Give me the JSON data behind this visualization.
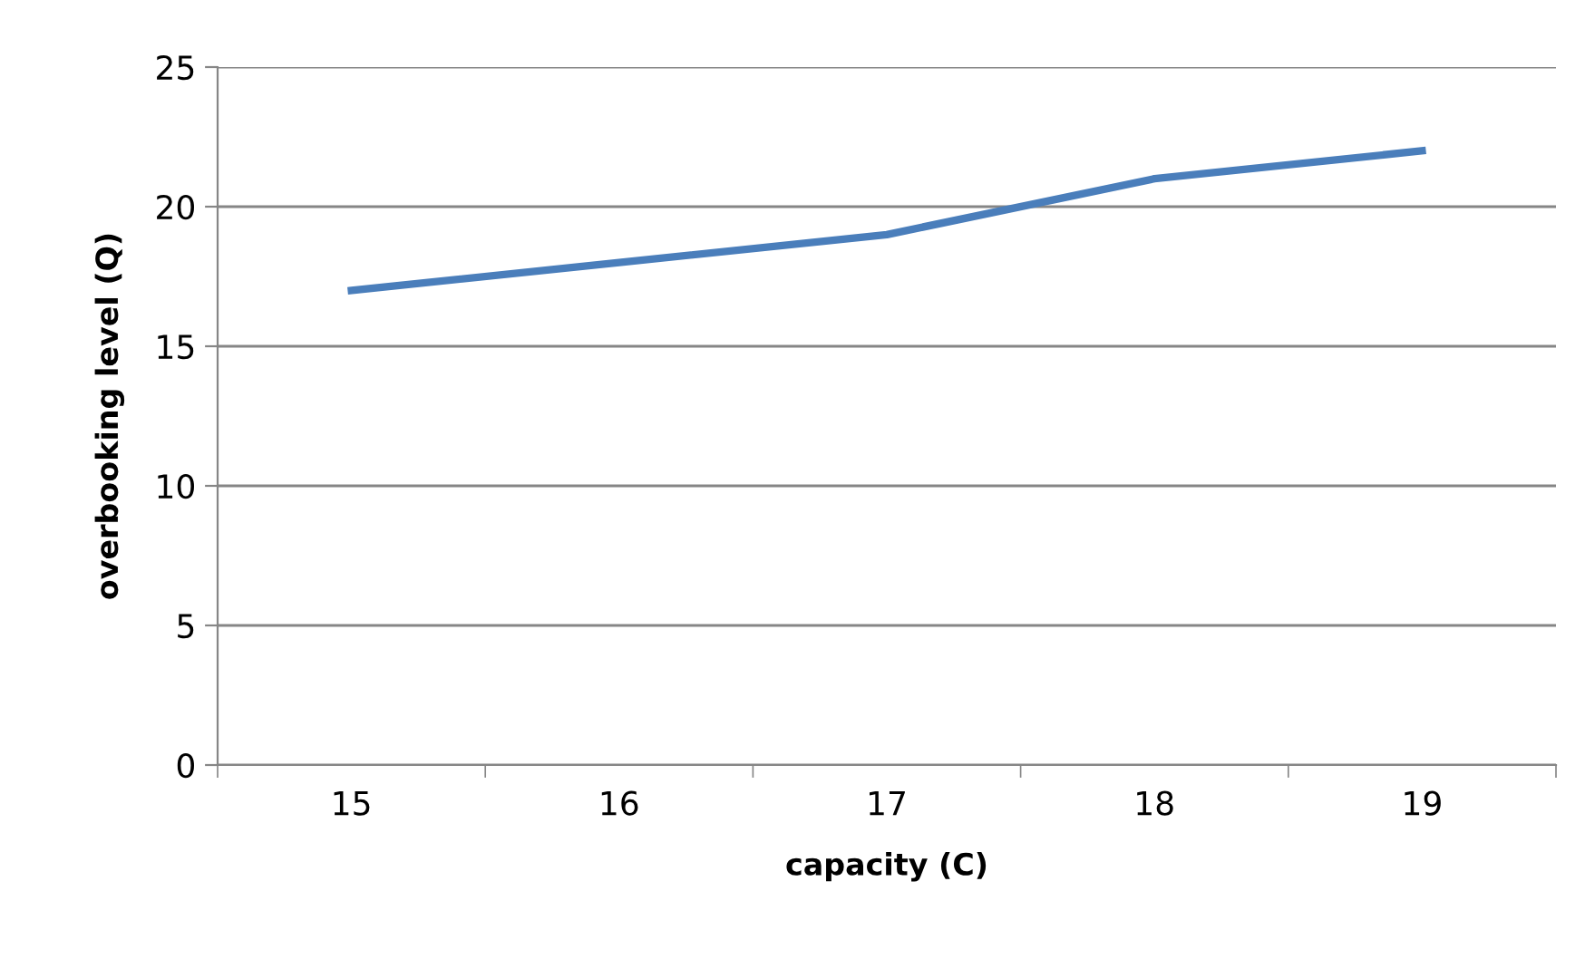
{
  "chart_data": {
    "type": "line",
    "xlabel": "capacity (C)",
    "ylabel": "overbooking level (Q)",
    "categories": [
      "15",
      "16",
      "17",
      "18",
      "19"
    ],
    "series": [
      {
        "color": "#4a7ebb",
        "values": [
          17,
          18,
          19,
          21,
          22
        ]
      }
    ],
    "ylim": [
      0,
      25
    ],
    "yticks": [
      0,
      5,
      10,
      15,
      20,
      25
    ],
    "grid": "y",
    "marker": "none",
    "line_style": "solid"
  }
}
